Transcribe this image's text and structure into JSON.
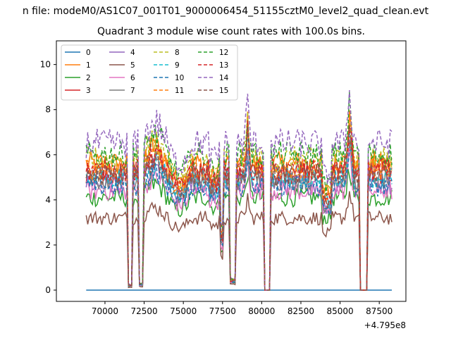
{
  "suptitle": "n file: modeM0/AS1C07_001T01_9000006454_51155cztM0_level2_quad_clean.evt",
  "chart_data": {
    "type": "line",
    "title": "Quadrant 3 module wise count rates with 100.0s bins.",
    "xlabel": "",
    "ylabel": "",
    "x_offset_label": "+4.795e8",
    "x_offset": 479500000,
    "xlim": [
      66900,
      89200
    ],
    "ylim": [
      -0.5,
      11.05
    ],
    "x_ticks": [
      70000,
      72500,
      75000,
      77500,
      80000,
      82500,
      85000,
      87500
    ],
    "x_tick_labels": [
      "70000",
      "72500",
      "75000",
      "77500",
      "80000",
      "82500",
      "85000",
      "87500"
    ],
    "y_ticks": [
      0,
      2,
      4,
      6,
      8,
      10
    ],
    "y_tick_labels": [
      "0",
      "2",
      "4",
      "6",
      "8",
      "10"
    ],
    "grid": false,
    "legend": {
      "location": "upper left",
      "columns": 4
    },
    "x_start": 68800,
    "x_step": 100,
    "x_end": 88300,
    "data_gaps": [
      {
        "from": 80200,
        "to": 80500
      },
      {
        "from": 86300,
        "to": 86700
      }
    ],
    "dip_intervals": [
      {
        "from": 71500,
        "to": 71700,
        "depth": 0.04
      },
      {
        "from": 72200,
        "to": 72400,
        "depth": 0.05
      },
      {
        "from": 77400,
        "to": 77500,
        "depth": 0.45
      },
      {
        "from": 78000,
        "to": 78300,
        "depth": 0.08
      }
    ],
    "series": [
      {
        "name": "0",
        "color": "#1f77b4",
        "dashed": false,
        "base": 0.0,
        "zero": true
      },
      {
        "name": "1",
        "color": "#ff7f0e",
        "dashed": false,
        "base": 5.6
      },
      {
        "name": "2",
        "color": "#2ca02c",
        "dashed": false,
        "base": 4.1
      },
      {
        "name": "3",
        "color": "#d62728",
        "dashed": false,
        "base": 5.2
      },
      {
        "name": "4",
        "color": "#9467bd",
        "dashed": false,
        "base": 4.7
      },
      {
        "name": "5",
        "color": "#8c564b",
        "dashed": false,
        "base": 3.2
      },
      {
        "name": "6",
        "color": "#e377c2",
        "dashed": false,
        "base": 4.4
      },
      {
        "name": "7",
        "color": "#7f7f7f",
        "dashed": false,
        "base": 4.9
      },
      {
        "name": "8",
        "color": "#bcbd22",
        "dashed": true,
        "base": 5.8
      },
      {
        "name": "9",
        "color": "#17becf",
        "dashed": true,
        "base": 5.0
      },
      {
        "name": "10",
        "color": "#1f77b4",
        "dashed": true,
        "base": 4.6
      },
      {
        "name": "11",
        "color": "#ff7f0e",
        "dashed": true,
        "base": 5.4
      },
      {
        "name": "12",
        "color": "#2ca02c",
        "dashed": true,
        "base": 6.0
      },
      {
        "name": "13",
        "color": "#d62728",
        "dashed": true,
        "base": 5.3
      },
      {
        "name": "14",
        "color": "#9467bd",
        "dashed": true,
        "base": 6.5
      },
      {
        "name": "15",
        "color": "#8c564b",
        "dashed": true,
        "base": 5.1
      }
    ]
  }
}
